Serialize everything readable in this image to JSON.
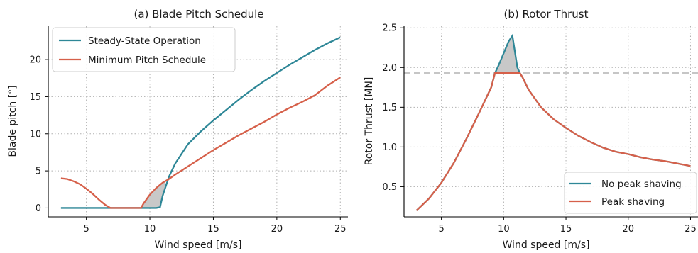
{
  "colors": {
    "teal": "#2e8797",
    "orange": "#d6604a",
    "fill": "#c8c8c8",
    "refline": "#c6c6c6"
  },
  "chart_data": [
    {
      "type": "line",
      "title": "(a) Blade Pitch Schedule",
      "xlabel": "Wind speed [m/s]",
      "ylabel": "Blade pitch [°]",
      "xlim": [
        2.0,
        25.6
      ],
      "ylim": [
        -1.2,
        24.5
      ],
      "xticks": [
        5,
        10,
        15,
        20,
        25
      ],
      "xtick_labels": [
        "5",
        "10",
        "15",
        "20",
        "25"
      ],
      "yticks": [
        0,
        5,
        10,
        15,
        20
      ],
      "ytick_labels": [
        "0",
        "5",
        "10",
        "15",
        "20"
      ],
      "grid": true,
      "legend_position": "top-left",
      "shaded_region": "between series, 9.3 to 11.2 m/s",
      "series": [
        {
          "name": "Steady-State Operation",
          "color": "#2e8797",
          "x": [
            3,
            4,
            5,
            6,
            7,
            8,
            9,
            10,
            10.5,
            10.8,
            11,
            11.5,
            12,
            13,
            14,
            15,
            16,
            17,
            18,
            19,
            20,
            21,
            22,
            23,
            24,
            25
          ],
          "y": [
            0,
            0,
            0,
            0,
            0,
            0,
            0,
            0,
            0,
            0.1,
            1.6,
            4.2,
            6.0,
            8.6,
            10.3,
            11.8,
            13.2,
            14.6,
            15.9,
            17.1,
            18.2,
            19.3,
            20.3,
            21.3,
            22.2,
            23.0
          ]
        },
        {
          "name": "Minimum Pitch Schedule",
          "color": "#d6604a",
          "x": [
            3,
            3.5,
            4,
            4.5,
            5,
            5.5,
            6,
            6.5,
            6.9,
            7.5,
            8.5,
            9.3,
            9.5,
            10,
            10.5,
            11,
            11.5,
            12,
            13,
            14,
            15,
            16,
            17,
            18,
            19,
            20,
            21,
            22,
            23,
            24,
            25
          ],
          "y": [
            4.0,
            3.9,
            3.6,
            3.2,
            2.6,
            1.9,
            1.1,
            0.4,
            0,
            0,
            0,
            0,
            0.6,
            1.8,
            2.7,
            3.4,
            3.9,
            4.5,
            5.6,
            6.7,
            7.8,
            8.8,
            9.8,
            10.7,
            11.6,
            12.6,
            13.5,
            14.3,
            15.2,
            16.5,
            17.6
          ]
        }
      ]
    },
    {
      "type": "line",
      "title": "(b) Rotor Thrust",
      "xlabel": "Wind speed [m/s]",
      "ylabel": "Rotor Thrust [MN]",
      "xlim": [
        2.0,
        25.6
      ],
      "ylim": [
        0.12,
        2.52
      ],
      "xticks": [
        5,
        10,
        15,
        20,
        25
      ],
      "xtick_labels": [
        "5",
        "10",
        "15",
        "20",
        "25"
      ],
      "yticks": [
        0.5,
        1.0,
        1.5,
        2.0,
        2.5
      ],
      "ytick_labels": [
        "0.5",
        "1.0",
        "1.5",
        "2.0",
        "2.5"
      ],
      "grid": true,
      "legend_position": "bottom-right",
      "reference_line_y": 1.93,
      "shaded_region": "between series, 9.3 to 11.4 m/s",
      "series": [
        {
          "name": "No peak shaving",
          "color": "#2e8797",
          "x": [
            3,
            4,
            5,
            6,
            7,
            8,
            9,
            9.3,
            9.6,
            10,
            10.4,
            10.7,
            10.9,
            11.1,
            11.3,
            11.5,
            12,
            13,
            14,
            15,
            16,
            17,
            18,
            19,
            20,
            21,
            22,
            23,
            24,
            25
          ],
          "y": [
            0.2,
            0.35,
            0.55,
            0.8,
            1.1,
            1.42,
            1.75,
            1.93,
            2.03,
            2.18,
            2.33,
            2.4,
            2.2,
            2.0,
            1.93,
            1.88,
            1.72,
            1.5,
            1.35,
            1.24,
            1.14,
            1.06,
            0.99,
            0.94,
            0.91,
            0.87,
            0.84,
            0.82,
            0.79,
            0.76
          ]
        },
        {
          "name": "Peak shaving",
          "color": "#d6604a",
          "x": [
            3,
            4,
            5,
            6,
            7,
            8,
            9,
            9.3,
            10,
            10.5,
            11,
            11.3,
            11.5,
            12,
            13,
            14,
            15,
            16,
            17,
            18,
            19,
            20,
            21,
            22,
            23,
            24,
            25
          ],
          "y": [
            0.2,
            0.35,
            0.55,
            0.8,
            1.1,
            1.42,
            1.75,
            1.93,
            1.93,
            1.93,
            1.93,
            1.93,
            1.88,
            1.72,
            1.5,
            1.35,
            1.24,
            1.14,
            1.06,
            0.99,
            0.94,
            0.91,
            0.87,
            0.84,
            0.82,
            0.79,
            0.76
          ]
        }
      ]
    }
  ]
}
